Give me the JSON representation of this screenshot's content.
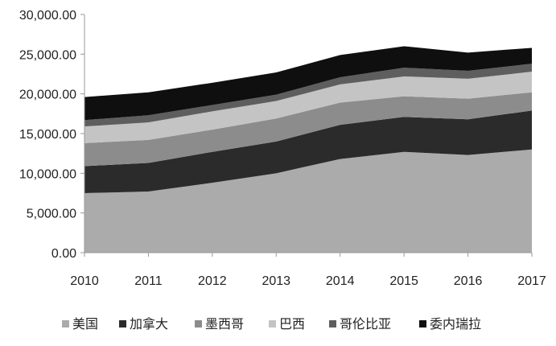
{
  "chart_data": {
    "type": "area",
    "stacked": true,
    "categories": [
      "2010",
      "2011",
      "2012",
      "2013",
      "2014",
      "2015",
      "2016",
      "2017"
    ],
    "y_tick_labels": [
      "0.00",
      "5,000.00",
      "10,000.00",
      "15,000.00",
      "20,000.00",
      "25,000.00",
      "30,000.00"
    ],
    "ylim": [
      0,
      30000
    ],
    "grid": false,
    "legend_position": "bottom",
    "series": [
      {
        "name": "美国",
        "color": "#ababab",
        "values": [
          7500,
          7700,
          8800,
          10000,
          11800,
          12700,
          12300,
          13000
        ]
      },
      {
        "name": "加拿大",
        "color": "#2b2b2b",
        "values": [
          3400,
          3600,
          3900,
          4000,
          4300,
          4400,
          4500,
          4900
        ]
      },
      {
        "name": "墨西哥",
        "color": "#8c8c8c",
        "values": [
          2900,
          2900,
          2800,
          2900,
          2800,
          2600,
          2600,
          2300
        ]
      },
      {
        "name": "巴西",
        "color": "#c4c4c4",
        "values": [
          2100,
          2200,
          2300,
          2200,
          2300,
          2500,
          2500,
          2600
        ]
      },
      {
        "name": "哥伦比亚",
        "color": "#5e5e5e",
        "values": [
          800,
          900,
          800,
          800,
          900,
          1100,
          1000,
          1000
        ]
      },
      {
        "name": "委内瑞拉",
        "color": "#0f0f0f",
        "values": [
          2900,
          2900,
          2800,
          2800,
          2800,
          2700,
          2300,
          2000
        ]
      }
    ]
  }
}
